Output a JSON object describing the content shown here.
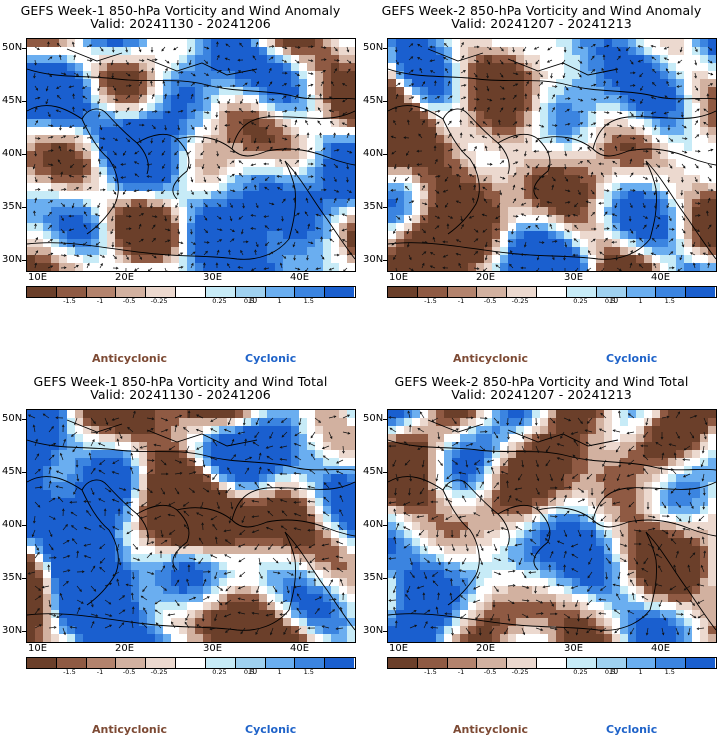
{
  "panels": [
    {
      "title_line1": "GEFS Week-1 850-hPa Vorticity and Wind Anomaly",
      "title_line2": "Valid: 20241130 - 20241206",
      "variant": "anomaly",
      "seed": 11
    },
    {
      "title_line1": "GEFS Week-2 850-hPa Vorticity and Wind Anomaly",
      "title_line2": "Valid: 20241207 - 20241213",
      "variant": "anomaly",
      "seed": 23
    },
    {
      "title_line1": "GEFS Week-1 850-hPa Vorticity and Wind Total",
      "title_line2": "Valid: 20241130 - 20241206",
      "variant": "total",
      "seed": 37
    },
    {
      "title_line1": "GEFS Week-2 850-hPa Vorticity and Wind Total",
      "title_line2": "Valid: 20241207 - 20241213",
      "variant": "total",
      "seed": 53
    }
  ],
  "latitude_labels": [
    "50N",
    "45N",
    "40N",
    "35N",
    "30N"
  ],
  "longitude_labels": [
    "10E",
    "20E",
    "30E",
    "40E"
  ],
  "colorbar": {
    "labels": [
      "-1.5",
      "-1",
      "-0.5",
      "-0.25",
      "0.25",
      "0.5",
      "1",
      "1.5"
    ],
    "unit": "10",
    "colors": [
      "#6b3f2a",
      "#8f5a43",
      "#b3836d",
      "#d2b1a0",
      "#ecd9cf",
      "#ffffff",
      "#c7ebf7",
      "#9fd1f0",
      "#6aaef0",
      "#3b84e0",
      "#1a5fcf"
    ]
  },
  "legend": {
    "anticyclonic": "Anticyclonic",
    "cyclonic": "Cyclonic",
    "anticyclonic_color": "#7d4a34",
    "cyclonic_color": "#1f63c9"
  }
}
